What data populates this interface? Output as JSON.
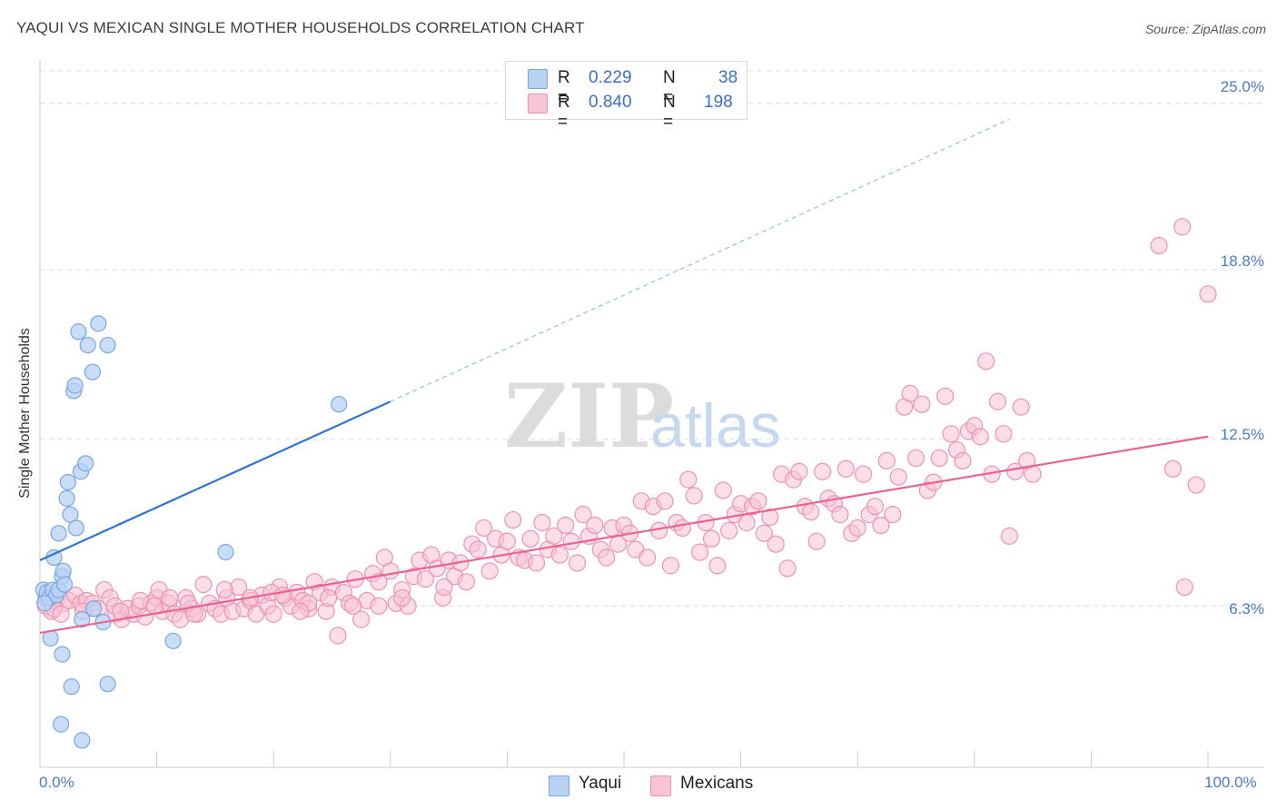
{
  "title": "YAQUI VS MEXICAN SINGLE MOTHER HOUSEHOLDS CORRELATION CHART",
  "source": "Source: ZipAtlas.com",
  "watermark": {
    "zip": "ZIP",
    "atlas": "atlas"
  },
  "colors": {
    "yaqui_fill": "#b8d2f4",
    "yaqui_stroke": "#7aa6e0",
    "yaqui_line": "#2f74d0",
    "mex_fill": "#f7c3d5",
    "mex_stroke": "#eb93b3",
    "mex_line": "#e8648f",
    "axis_text": "#4b79c8",
    "grid": "#dddddd"
  },
  "legend": {
    "rows": [
      {
        "r_label": "R =",
        "r_value": "0.229",
        "n_label": "N =",
        "n_value": "38"
      },
      {
        "r_label": "R =",
        "r_value": "0.840",
        "n_label": "N =",
        "n_value": "198"
      }
    ]
  },
  "bottom_legend": {
    "yaqui": "Yaqui",
    "mexicans": "Mexicans"
  },
  "chart_data": {
    "type": "scatter",
    "title": "YAQUI VS MEXICAN SINGLE MOTHER HOUSEHOLDS CORRELATION CHART",
    "xlabel": "",
    "ylabel": "Single Mother Households",
    "x_tick_labels": [
      "0.0%",
      "100.0%"
    ],
    "y_tick_labels": [
      "6.3%",
      "12.5%",
      "18.8%",
      "25.0%"
    ],
    "y_ticks": [
      6.3,
      12.5,
      18.8,
      25.0
    ],
    "xlim": [
      0,
      100
    ],
    "ylim": [
      0.3,
      26.2
    ],
    "grid": true,
    "legend_position": "top-center",
    "series": [
      {
        "name": "Yaqui",
        "R": 0.229,
        "N": 38,
        "trend": {
          "x": [
            0,
            30
          ],
          "y": [
            8.0,
            13.9
          ],
          "extended_to": [
            83,
            24.4
          ]
        },
        "points": [
          [
            0.3,
            6.9
          ],
          [
            0.5,
            6.6
          ],
          [
            0.6,
            6.8
          ],
          [
            0.8,
            6.6
          ],
          [
            1.1,
            6.9
          ],
          [
            1.4,
            6.7
          ],
          [
            1.6,
            6.9
          ],
          [
            1.2,
            8.1
          ],
          [
            1.6,
            9.0
          ],
          [
            1.9,
            7.4
          ],
          [
            2.0,
            7.6
          ],
          [
            2.1,
            7.1
          ],
          [
            2.3,
            10.3
          ],
          [
            2.4,
            10.9
          ],
          [
            2.6,
            9.7
          ],
          [
            3.1,
            9.2
          ],
          [
            2.9,
            14.3
          ],
          [
            3.0,
            14.5
          ],
          [
            3.3,
            16.5
          ],
          [
            3.5,
            11.3
          ],
          [
            3.9,
            11.6
          ],
          [
            4.1,
            16.0
          ],
          [
            4.5,
            15.0
          ],
          [
            5.0,
            16.8
          ],
          [
            5.8,
            16.0
          ],
          [
            4.6,
            6.2
          ],
          [
            5.4,
            5.7
          ],
          [
            3.6,
            5.8
          ],
          [
            0.9,
            5.1
          ],
          [
            1.9,
            4.5
          ],
          [
            2.7,
            3.3
          ],
          [
            5.8,
            3.4
          ],
          [
            1.8,
            1.9
          ],
          [
            3.6,
            1.3
          ],
          [
            11.4,
            5.0
          ],
          [
            15.9,
            8.3
          ],
          [
            25.6,
            13.8
          ],
          [
            0.4,
            6.4
          ]
        ]
      },
      {
        "name": "Mexicans",
        "R": 0.84,
        "N": 198,
        "trend": {
          "x": [
            0,
            100
          ],
          "y": [
            5.3,
            12.6
          ]
        },
        "points": [
          [
            0.5,
            6.3
          ],
          [
            1.0,
            6.1
          ],
          [
            1.5,
            6.6
          ],
          [
            2.0,
            6.4
          ],
          [
            2.5,
            6.5
          ],
          [
            3.0,
            6.7
          ],
          [
            3.5,
            6.4
          ],
          [
            4.0,
            6.5
          ],
          [
            4.5,
            6.4
          ],
          [
            5.0,
            6.2
          ],
          [
            5.5,
            6.9
          ],
          [
            6.0,
            6.6
          ],
          [
            6.5,
            6.0
          ],
          [
            7.0,
            5.8
          ],
          [
            7.5,
            6.2
          ],
          [
            8.0,
            6.0
          ],
          [
            8.5,
            6.3
          ],
          [
            9.0,
            5.9
          ],
          [
            9.5,
            6.4
          ],
          [
            10.0,
            6.6
          ],
          [
            10.5,
            6.1
          ],
          [
            11.0,
            6.4
          ],
          [
            11.5,
            6.0
          ],
          [
            12.0,
            5.8
          ],
          [
            12.5,
            6.6
          ],
          [
            13.0,
            6.2
          ],
          [
            13.5,
            6.0
          ],
          [
            14.0,
            7.1
          ],
          [
            14.5,
            6.4
          ],
          [
            15.0,
            6.2
          ],
          [
            15.5,
            6.0
          ],
          [
            16.0,
            6.6
          ],
          [
            16.5,
            6.1
          ],
          [
            17.0,
            7.0
          ],
          [
            17.5,
            6.2
          ],
          [
            18.0,
            6.5
          ],
          [
            18.5,
            6.0
          ],
          [
            19.0,
            6.7
          ],
          [
            19.5,
            6.3
          ],
          [
            20.0,
            6.0
          ],
          [
            20.5,
            7.0
          ],
          [
            21.0,
            6.6
          ],
          [
            21.5,
            6.3
          ],
          [
            22.0,
            6.8
          ],
          [
            22.5,
            6.5
          ],
          [
            23.0,
            6.2
          ],
          [
            23.5,
            7.2
          ],
          [
            24.0,
            6.8
          ],
          [
            24.5,
            6.1
          ],
          [
            25.0,
            7.0
          ],
          [
            25.5,
            5.2
          ],
          [
            26.0,
            6.8
          ],
          [
            26.5,
            6.4
          ],
          [
            27.0,
            7.3
          ],
          [
            27.5,
            5.8
          ],
          [
            28.0,
            6.5
          ],
          [
            28.5,
            7.5
          ],
          [
            29.0,
            7.2
          ],
          [
            29.5,
            8.1
          ],
          [
            30.0,
            7.6
          ],
          [
            30.5,
            6.4
          ],
          [
            31.0,
            6.9
          ],
          [
            31.5,
            6.3
          ],
          [
            32.0,
            7.4
          ],
          [
            32.5,
            8.0
          ],
          [
            33.0,
            7.3
          ],
          [
            33.5,
            8.2
          ],
          [
            34.0,
            7.7
          ],
          [
            34.5,
            6.6
          ],
          [
            35.0,
            8.0
          ],
          [
            35.5,
            7.4
          ],
          [
            36.0,
            7.9
          ],
          [
            36.5,
            7.2
          ],
          [
            37.0,
            8.6
          ],
          [
            37.5,
            8.4
          ],
          [
            38.0,
            9.2
          ],
          [
            38.5,
            7.6
          ],
          [
            39.0,
            8.8
          ],
          [
            39.5,
            8.2
          ],
          [
            40.0,
            8.7
          ],
          [
            40.5,
            9.5
          ],
          [
            41.0,
            8.1
          ],
          [
            41.5,
            8.0
          ],
          [
            42.0,
            8.8
          ],
          [
            42.5,
            7.9
          ],
          [
            43.0,
            9.4
          ],
          [
            43.5,
            8.4
          ],
          [
            44.0,
            8.9
          ],
          [
            44.5,
            8.2
          ],
          [
            45.0,
            9.3
          ],
          [
            45.5,
            8.7
          ],
          [
            46.0,
            7.9
          ],
          [
            46.5,
            9.7
          ],
          [
            47.0,
            8.9
          ],
          [
            47.5,
            9.3
          ],
          [
            48.0,
            8.4
          ],
          [
            48.5,
            8.1
          ],
          [
            49.0,
            9.2
          ],
          [
            49.5,
            8.6
          ],
          [
            50.0,
            9.3
          ],
          [
            50.5,
            9.0
          ],
          [
            51.0,
            8.4
          ],
          [
            51.5,
            10.2
          ],
          [
            52.0,
            8.1
          ],
          [
            52.5,
            10.0
          ],
          [
            53.0,
            9.1
          ],
          [
            53.5,
            10.2
          ],
          [
            54.0,
            7.8
          ],
          [
            54.5,
            9.4
          ],
          [
            55.0,
            9.2
          ],
          [
            55.5,
            11.0
          ],
          [
            56.0,
            10.4
          ],
          [
            56.5,
            8.3
          ],
          [
            57.0,
            9.4
          ],
          [
            57.5,
            8.8
          ],
          [
            58.0,
            7.8
          ],
          [
            58.5,
            10.6
          ],
          [
            59.0,
            9.1
          ],
          [
            59.5,
            9.7
          ],
          [
            60.0,
            10.1
          ],
          [
            60.5,
            9.4
          ],
          [
            61.0,
            10.0
          ],
          [
            61.5,
            10.2
          ],
          [
            62.0,
            9.0
          ],
          [
            62.5,
            9.6
          ],
          [
            63.0,
            8.6
          ],
          [
            63.5,
            11.2
          ],
          [
            64.0,
            7.7
          ],
          [
            64.5,
            11.0
          ],
          [
            65.0,
            11.3
          ],
          [
            65.5,
            10.0
          ],
          [
            66.0,
            9.8
          ],
          [
            66.5,
            8.7
          ],
          [
            67.0,
            11.3
          ],
          [
            67.5,
            10.3
          ],
          [
            68.0,
            10.1
          ],
          [
            68.5,
            9.7
          ],
          [
            69.0,
            11.4
          ],
          [
            69.5,
            9.0
          ],
          [
            70.0,
            9.2
          ],
          [
            70.5,
            11.2
          ],
          [
            71.0,
            9.7
          ],
          [
            71.5,
            10.0
          ],
          [
            72.0,
            9.3
          ],
          [
            72.5,
            11.7
          ],
          [
            73.0,
            9.7
          ],
          [
            73.5,
            11.1
          ],
          [
            74.0,
            13.7
          ],
          [
            74.5,
            14.2
          ],
          [
            75.0,
            11.8
          ],
          [
            75.5,
            13.8
          ],
          [
            76.0,
            10.6
          ],
          [
            76.5,
            10.9
          ],
          [
            77.0,
            11.8
          ],
          [
            77.5,
            14.1
          ],
          [
            78.0,
            12.7
          ],
          [
            78.5,
            12.1
          ],
          [
            79.0,
            11.7
          ],
          [
            79.5,
            12.8
          ],
          [
            80.0,
            13.0
          ],
          [
            80.5,
            12.6
          ],
          [
            81.0,
            15.4
          ],
          [
            81.5,
            11.2
          ],
          [
            82.0,
            13.9
          ],
          [
            82.5,
            12.7
          ],
          [
            83.0,
            8.9
          ],
          [
            83.5,
            11.3
          ],
          [
            84.0,
            13.7
          ],
          [
            84.5,
            11.7
          ],
          [
            85.0,
            11.2
          ],
          [
            95.8,
            19.7
          ],
          [
            97.8,
            20.4
          ],
          [
            100.0,
            17.9
          ],
          [
            99.0,
            10.8
          ],
          [
            97.0,
            11.4
          ],
          [
            98.0,
            7.0
          ],
          [
            10.2,
            6.9
          ],
          [
            18.0,
            6.6
          ],
          [
            29.0,
            6.3
          ],
          [
            31.0,
            6.6
          ],
          [
            12.7,
            6.4
          ],
          [
            15.8,
            6.9
          ],
          [
            23.0,
            6.4
          ],
          [
            1.2,
            6.2
          ],
          [
            1.8,
            6.0
          ],
          [
            3.7,
            6.1
          ],
          [
            6.4,
            6.3
          ],
          [
            6.9,
            6.1
          ],
          [
            8.6,
            6.5
          ],
          [
            9.8,
            6.3
          ],
          [
            11.1,
            6.6
          ],
          [
            13.2,
            6.0
          ],
          [
            19.8,
            6.8
          ],
          [
            20.8,
            6.7
          ],
          [
            22.3,
            6.1
          ],
          [
            24.7,
            6.6
          ],
          [
            26.8,
            6.3
          ],
          [
            34.6,
            7.0
          ]
        ]
      }
    ]
  }
}
